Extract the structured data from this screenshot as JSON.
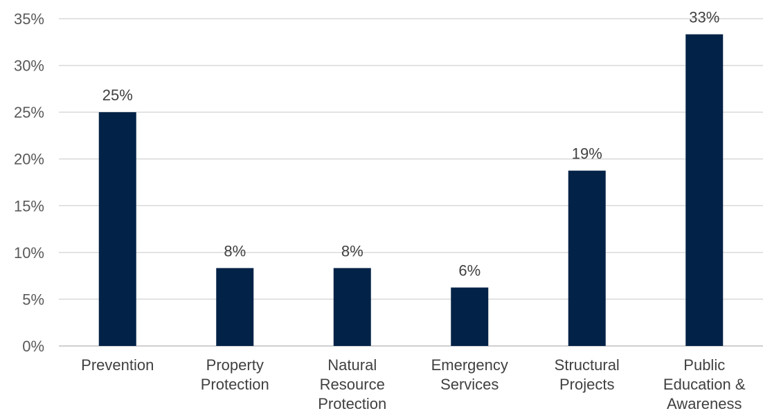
{
  "chart_data": {
    "type": "bar",
    "title": "",
    "xlabel": "",
    "ylabel": "",
    "categories": [
      [
        "Prevention"
      ],
      [
        "Property",
        "Protection"
      ],
      [
        "Natural",
        "Resource",
        "Protection"
      ],
      [
        "Emergency",
        "Services"
      ],
      [
        "Structural",
        "Projects"
      ],
      [
        "Public",
        "Education &",
        "Awareness"
      ]
    ],
    "values": [
      25,
      8.33,
      8.33,
      6.25,
      18.75,
      33.33
    ],
    "data_labels": [
      "25%",
      "8%",
      "8%",
      "6%",
      "19%",
      "33%"
    ],
    "ylim": [
      0,
      35
    ],
    "y_ticks": [
      0,
      5,
      10,
      15,
      20,
      25,
      30,
      35
    ],
    "y_tick_labels": [
      "0%",
      "5%",
      "10%",
      "15%",
      "20%",
      "25%",
      "30%",
      "35%"
    ],
    "grid": true,
    "bar_color": "#022247"
  }
}
